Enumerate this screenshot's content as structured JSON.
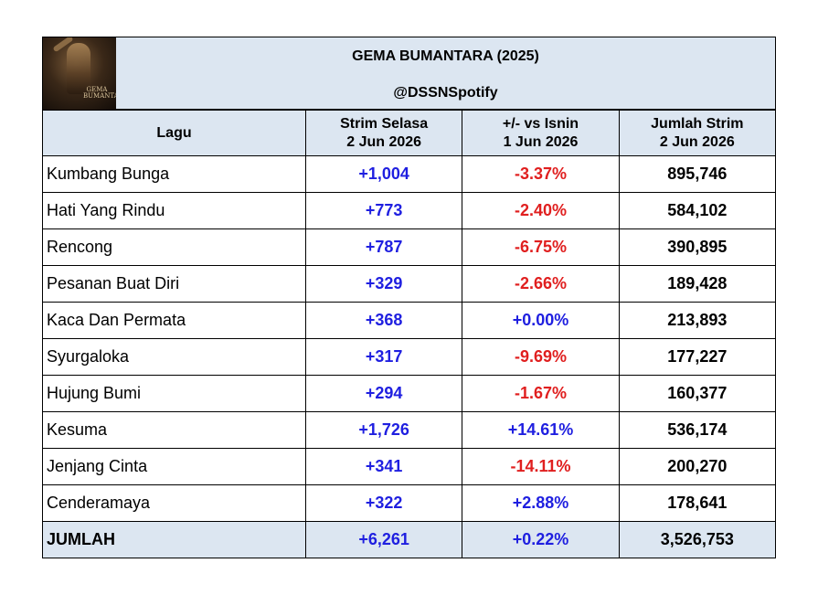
{
  "header": {
    "title": "GEMA BUMANTARA (2025)",
    "handle": "@DSSNSpotify",
    "cover_text": "GEMA BUMANTARA"
  },
  "columns": {
    "song": "Lagu",
    "tuesday_line1": "Strim Selasa",
    "tuesday_line2": "2 Jun 2026",
    "change_line1": "+/- vs Isnin",
    "change_line2": "1 Jun 2026",
    "total_line1": "Jumlah Strim",
    "total_line2": "2 Jun 2026"
  },
  "rows": [
    {
      "song": "Kumbang Bunga",
      "daily": "+1,004",
      "change": "-3.37%",
      "total": "895,746",
      "change_sign": "neg"
    },
    {
      "song": "Hati Yang Rindu",
      "daily": "+773",
      "change": "-2.40%",
      "total": "584,102",
      "change_sign": "neg"
    },
    {
      "song": "Rencong",
      "daily": "+787",
      "change": "-6.75%",
      "total": "390,895",
      "change_sign": "neg"
    },
    {
      "song": "Pesanan Buat Diri",
      "daily": "+329",
      "change": "-2.66%",
      "total": "189,428",
      "change_sign": "neg"
    },
    {
      "song": "Kaca Dan Permata",
      "daily": "+368",
      "change": "+0.00%",
      "total": "213,893",
      "change_sign": "pos"
    },
    {
      "song": "Syurgaloka",
      "daily": "+317",
      "change": "-9.69%",
      "total": "177,227",
      "change_sign": "neg"
    },
    {
      "song": "Hujung Bumi",
      "daily": "+294",
      "change": "-1.67%",
      "total": "160,377",
      "change_sign": "neg"
    },
    {
      "song": "Kesuma",
      "daily": "+1,726",
      "change": "+14.61%",
      "total": "536,174",
      "change_sign": "pos"
    },
    {
      "song": "Jenjang Cinta",
      "daily": "+341",
      "change": "-14.11%",
      "total": "200,270",
      "change_sign": "neg"
    },
    {
      "song": "Cenderamaya",
      "daily": "+322",
      "change": "+2.88%",
      "total": "178,641",
      "change_sign": "pos"
    }
  ],
  "total": {
    "label": "JUMLAH",
    "daily": "+6,261",
    "change": "+0.22%",
    "total": "3,526,753"
  },
  "colors": {
    "header_bg": "#dce6f1",
    "positive": "#1f1fe0",
    "negative": "#e01f1f"
  }
}
